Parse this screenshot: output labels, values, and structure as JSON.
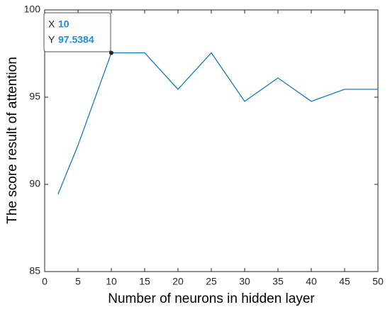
{
  "chart_data": {
    "type": "line",
    "xlabel": "Number of neurons in hidden layer",
    "ylabel": "The score result of attention",
    "x": [
      2,
      5,
      10,
      15,
      20,
      25,
      30,
      35,
      40,
      45,
      50
    ],
    "values": [
      89.43,
      92.24,
      97.5384,
      97.54,
      95.45,
      97.54,
      94.76,
      96.1,
      94.76,
      95.45,
      95.45
    ],
    "color": "#0072bd",
    "xlim": [
      0,
      50
    ],
    "xticks": [
      0,
      5,
      10,
      15,
      20,
      25,
      30,
      35,
      40,
      45,
      50
    ],
    "ylim": [
      85,
      100
    ],
    "yticks": [
      85,
      90,
      95,
      100
    ],
    "box": true,
    "datatip": {
      "x_label": "X",
      "x": 10,
      "y_label": "Y",
      "y": 97.5384
    }
  }
}
